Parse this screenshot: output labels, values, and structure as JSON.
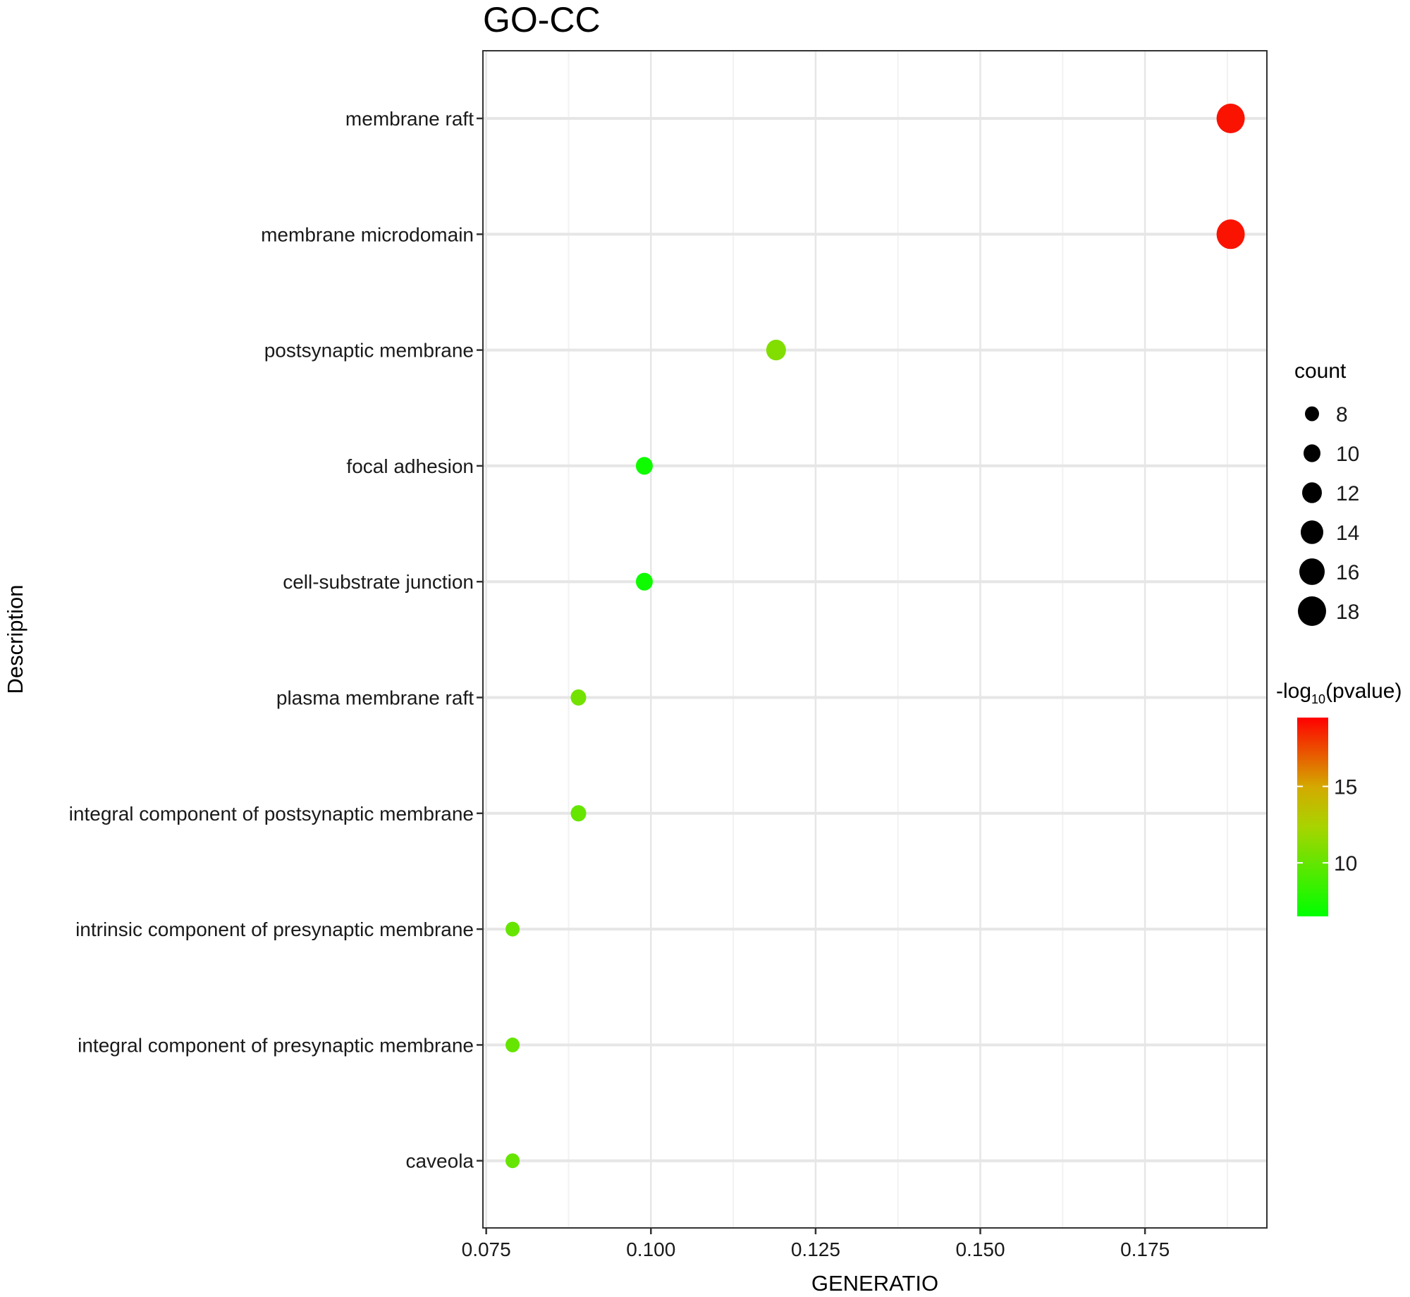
{
  "chart_data": {
    "type": "scatter",
    "title": "GO-CC",
    "xlabel": "GENERATIO",
    "ylabel": "Description",
    "xlim": [
      0.0745,
      0.1935
    ],
    "xticks": [
      "0.075",
      "0.100",
      "0.125",
      "0.150",
      "0.175"
    ],
    "xtick_values": [
      0.075,
      0.1,
      0.125,
      0.15,
      0.175
    ],
    "grid": true,
    "points": [
      {
        "description": "membrane raft",
        "generatio": 0.188,
        "count": 18,
        "neg_log10_pvalue": 19
      },
      {
        "description": "membrane microdomain",
        "generatio": 0.188,
        "count": 18,
        "neg_log10_pvalue": 19
      },
      {
        "description": "postsynaptic membrane",
        "generatio": 0.119,
        "count": 12,
        "neg_log10_pvalue": 11
      },
      {
        "description": "focal adhesion",
        "generatio": 0.099,
        "count": 10,
        "neg_log10_pvalue": 7
      },
      {
        "description": "cell-substrate junction",
        "generatio": 0.099,
        "count": 10,
        "neg_log10_pvalue": 7
      },
      {
        "description": "plasma membrane raft",
        "generatio": 0.089,
        "count": 9,
        "neg_log10_pvalue": 10.5
      },
      {
        "description": "integral component of postsynaptic membrane",
        "generatio": 0.089,
        "count": 9,
        "neg_log10_pvalue": 10
      },
      {
        "description": "intrinsic component of presynaptic membrane",
        "generatio": 0.079,
        "count": 8,
        "neg_log10_pvalue": 10
      },
      {
        "description": "integral component of presynaptic membrane",
        "generatio": 0.079,
        "count": 8,
        "neg_log10_pvalue": 10
      },
      {
        "description": "caveola",
        "generatio": 0.079,
        "count": 8,
        "neg_log10_pvalue": 10
      }
    ],
    "size_legend": {
      "title": "count",
      "values": [
        8,
        10,
        12,
        14,
        16,
        18
      ],
      "labels": [
        "8",
        "10",
        "12",
        "14",
        "16",
        "18"
      ]
    },
    "color_legend": {
      "title_prefix": "-log",
      "title_subscript": "10",
      "title_suffix": "(pvalue)",
      "range": [
        6.5,
        19.5
      ],
      "ticks": [
        10,
        15
      ],
      "tick_labels": [
        "10",
        "15"
      ],
      "low_color": "#00ff00",
      "high_color": "#ff0000"
    },
    "legend_position": "right"
  }
}
